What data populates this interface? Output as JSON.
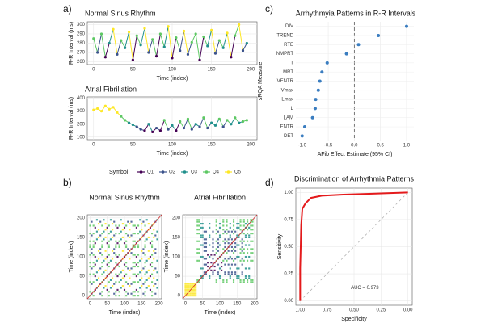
{
  "panel_labels": [
    "a)",
    "b)",
    "c)",
    "d)"
  ],
  "legend": {
    "title": "Symbol",
    "names": [
      "Q1",
      "Q2",
      "Q3",
      "Q4",
      "Q5"
    ],
    "colors": [
      "#440154",
      "#3b528b",
      "#21908c",
      "#5dc863",
      "#fde725"
    ]
  },
  "chart_data": [
    {
      "type": "line",
      "title": "Normal Sinus Rhythm",
      "xlabel": "Time (index)",
      "ylabel": "R-R Interval (ms)",
      "x": [
        0,
        5,
        10,
        15,
        20,
        25,
        30,
        35,
        40,
        45,
        50,
        55,
        60,
        65,
        70,
        75,
        80,
        85,
        90,
        95,
        100,
        105,
        110,
        115,
        120,
        125,
        130,
        135,
        140,
        145,
        150,
        155,
        160,
        165,
        170,
        175,
        180,
        185,
        190,
        195
      ],
      "values": [
        285,
        270,
        290,
        265,
        280,
        295,
        268,
        283,
        275,
        292,
        262,
        288,
        278,
        296,
        270,
        284,
        266,
        290,
        276,
        298,
        264,
        286,
        272,
        293,
        268,
        281,
        290,
        262,
        287,
        277,
        294,
        269,
        283,
        275,
        291,
        265,
        288,
        300,
        272,
        280
      ],
      "groups": [
        3,
        1,
        3,
        0,
        2,
        4,
        1,
        3,
        2,
        4,
        0,
        3,
        2,
        4,
        1,
        3,
        0,
        3,
        2,
        4,
        0,
        3,
        1,
        4,
        1,
        3,
        3,
        0,
        3,
        2,
        4,
        1,
        3,
        2,
        4,
        0,
        3,
        4,
        1,
        2
      ],
      "xlim": [
        -8,
        208
      ],
      "xticks": [
        0,
        50,
        100,
        150,
        200
      ],
      "ylim": [
        257,
        303
      ],
      "yticks": [
        260,
        270,
        280,
        290,
        300
      ]
    },
    {
      "type": "line",
      "title": "Atrial Fibrillation",
      "xlabel": "Time (index)",
      "ylabel": "R-R Interval (ms)",
      "x": [
        0,
        5,
        10,
        15,
        20,
        25,
        30,
        35,
        40,
        45,
        50,
        55,
        60,
        65,
        70,
        75,
        80,
        85,
        90,
        95,
        100,
        105,
        110,
        115,
        120,
        125,
        130,
        135,
        140,
        145,
        150,
        155,
        160,
        165,
        170,
        175,
        180,
        185,
        190,
        195
      ],
      "values": [
        310,
        320,
        300,
        340,
        315,
        330,
        290,
        260,
        230,
        210,
        195,
        180,
        160,
        150,
        200,
        140,
        170,
        150,
        230,
        160,
        190,
        150,
        220,
        170,
        240,
        160,
        200,
        180,
        250,
        170,
        210,
        190,
        240,
        180,
        230,
        200,
        250,
        210,
        220,
        230
      ],
      "groups": [
        4,
        4,
        4,
        4,
        4,
        4,
        4,
        3,
        3,
        2,
        2,
        1,
        1,
        0,
        2,
        0,
        1,
        0,
        3,
        1,
        2,
        0,
        3,
        1,
        3,
        1,
        2,
        1,
        3,
        1,
        2,
        2,
        3,
        1,
        3,
        2,
        3,
        2,
        3,
        3
      ],
      "xlim": [
        -8,
        208
      ],
      "xticks": [
        0,
        50,
        100,
        150,
        200
      ],
      "ylim": [
        80,
        410
      ],
      "yticks": [
        100,
        200,
        300,
        400
      ]
    },
    {
      "type": "recurrence",
      "title": "Normal Sinus Rhythm",
      "xlabel": "Time (index)",
      "ylabel": "Time (index)",
      "xlim": [
        -8,
        208
      ],
      "xticks": [
        0,
        50,
        100,
        150,
        200
      ],
      "ylim": [
        -8,
        208
      ],
      "yticks": [
        0,
        50,
        100,
        150,
        200
      ]
    },
    {
      "type": "recurrence",
      "title": "Atrial Fibrillation",
      "xlabel": "Time (index)",
      "ylabel": "Time (index)",
      "xlim": [
        -8,
        208
      ],
      "xticks": [
        0,
        50,
        100,
        150,
        200
      ],
      "ylim": [
        -8,
        208
      ],
      "yticks": [
        0,
        50,
        100,
        150,
        200
      ]
    },
    {
      "type": "dot",
      "title": "Arrhythmyia Patterns in R-R Intervals",
      "xlabel": "AFib Effect Estimate (95% CI)",
      "ylabel": "sRQA Measure",
      "categories": [
        "DIV",
        "TREND",
        "RTE",
        "NMPRT",
        "TT",
        "MRT",
        "VENTR",
        "Vmax",
        "Lmax",
        "L",
        "LAM",
        "ENTR",
        "DET"
      ],
      "values": [
        1.0,
        0.46,
        0.08,
        -0.15,
        -0.52,
        -0.62,
        -0.66,
        -0.69,
        -0.74,
        -0.75,
        -0.8,
        -0.95,
        -1.0
      ],
      "errors": [
        0.03,
        0.03,
        0.02,
        0.03,
        0.03,
        0.03,
        0.03,
        0.03,
        0.03,
        0.03,
        0.03,
        0.03,
        0.03
      ],
      "color": "#3a7dc0",
      "refline": 0,
      "xlim": [
        -1.12,
        1.14
      ],
      "xticks": [
        {
          "value": -1,
          "label": "-1.0"
        },
        -0.5,
        {
          "value": 0,
          "label": "0.0"
        },
        0.5,
        {
          "value": 1,
          "label": "1.0"
        }
      ]
    },
    {
      "type": "roc",
      "title": "Discrimination of Arrhythmia Patterns",
      "xlabel": "Specificity",
      "ylabel": "Sensitivity",
      "annotation": "AUC = 0.973",
      "x": [
        1,
        1,
        0.99,
        0.98,
        0.95,
        0.9,
        0.8,
        0.6,
        0.3,
        0
      ],
      "values": [
        0,
        0.3,
        0.7,
        0.85,
        0.9,
        0.95,
        0.97,
        0.98,
        0.99,
        1
      ],
      "color": "#e41a1c",
      "xlim": [
        1.04,
        -0.04
      ],
      "xticks": [
        {
          "value": 1,
          "label": "1.00"
        },
        {
          "value": 0.75,
          "label": "0.75"
        },
        {
          "value": 0.5,
          "label": "0.50"
        },
        {
          "value": 0.25,
          "label": "0.25"
        },
        {
          "value": 0,
          "label": "0.00"
        }
      ],
      "ylim": [
        -0.04,
        1.04
      ],
      "yticks": [
        {
          "value": 0,
          "label": "0.00"
        },
        {
          "value": 0.25,
          "label": "0.25"
        },
        {
          "value": 0.5,
          "label": "0.50"
        },
        {
          "value": 0.75,
          "label": "0.75"
        },
        {
          "value": 1,
          "label": "1.00"
        }
      ]
    }
  ]
}
